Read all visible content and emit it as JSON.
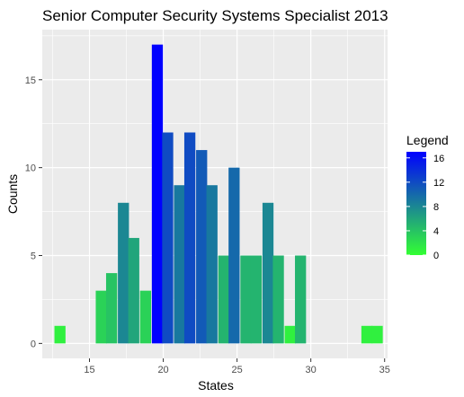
{
  "chart_data": {
    "type": "bar",
    "subtype": "histogram",
    "title": "Senior Computer Security Systems Specialist 2013",
    "xlabel": "States",
    "ylabel": "Counts",
    "xlim": [
      11.8,
      35.2
    ],
    "ylim": [
      -0.85,
      17.85
    ],
    "x_ticks": [
      15,
      20,
      25,
      30,
      35
    ],
    "y_ticks": [
      0,
      5,
      10,
      15
    ],
    "bin_width": 0.75,
    "bins": [
      {
        "x": 13.0,
        "count": 1
      },
      {
        "x": 15.8,
        "count": 3
      },
      {
        "x": 16.5,
        "count": 4
      },
      {
        "x": 17.3,
        "count": 8
      },
      {
        "x": 18.0,
        "count": 6
      },
      {
        "x": 18.8,
        "count": 3
      },
      {
        "x": 19.6,
        "count": 17
      },
      {
        "x": 20.3,
        "count": 12
      },
      {
        "x": 21.1,
        "count": 9
      },
      {
        "x": 21.8,
        "count": 12
      },
      {
        "x": 22.6,
        "count": 11
      },
      {
        "x": 23.3,
        "count": 9
      },
      {
        "x": 24.1,
        "count": 5
      },
      {
        "x": 24.8,
        "count": 10
      },
      {
        "x": 25.6,
        "count": 5
      },
      {
        "x": 26.3,
        "count": 5
      },
      {
        "x": 27.1,
        "count": 8
      },
      {
        "x": 27.8,
        "count": 5
      },
      {
        "x": 28.6,
        "count": 1
      },
      {
        "x": 29.3,
        "count": 5
      },
      {
        "x": 33.8,
        "count": 1
      },
      {
        "x": 34.5,
        "count": 1
      }
    ],
    "legend": {
      "title": "Legend",
      "placement": "right",
      "ticks": [
        0,
        4,
        8,
        12,
        16
      ],
      "range": [
        0,
        17
      ],
      "color_low": "#33ff33",
      "color_high": "#0000ff"
    },
    "panel_background": "#ebebeb",
    "grid": true,
    "grid_color": "#ffffff"
  }
}
